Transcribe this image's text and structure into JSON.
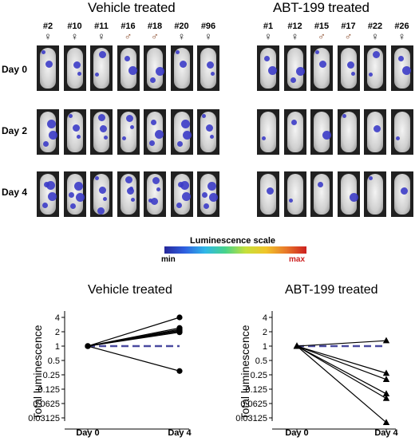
{
  "panels": [
    {
      "title": "Vehicle treated",
      "mice": [
        {
          "id": "#2",
          "sex": "♀"
        },
        {
          "id": "#10",
          "sex": "♀"
        },
        {
          "id": "#11",
          "sex": "♀"
        },
        {
          "id": "#16",
          "sex": "♂"
        },
        {
          "id": "#18",
          "sex": "♂"
        },
        {
          "id": "#20",
          "sex": "♀"
        },
        {
          "id": "#96",
          "sex": "♀"
        }
      ]
    },
    {
      "title": "ABT-199 treated",
      "mice": [
        {
          "id": "#1",
          "sex": "♀"
        },
        {
          "id": "#12",
          "sex": "♀"
        },
        {
          "id": "#15",
          "sex": "♂"
        },
        {
          "id": "#17",
          "sex": "♂"
        },
        {
          "id": "#22",
          "sex": "♀"
        },
        {
          "id": "#26",
          "sex": "♀"
        }
      ]
    }
  ],
  "days": [
    "Day 0",
    "Day 2",
    "Day 4"
  ],
  "scale": {
    "title": "Luminescence scale",
    "min": "min",
    "max": "max"
  },
  "colors": {
    "male_symbol": "#8a4a2a",
    "baseline_line": "#4a4aa0",
    "blob": "#3c3cc8"
  },
  "chart_data": [
    {
      "type": "line",
      "title": "Vehicle treated",
      "xlabel": "",
      "ylabel": "Total luminescence",
      "categories": [
        "Day 0",
        "Day 4"
      ],
      "y_scale": "log2",
      "y_ticks": [
        "4",
        "2",
        "1",
        "0.5",
        "0.25",
        "0.125",
        "0.0625",
        "0.03125"
      ],
      "marker": "circle",
      "baseline": 1,
      "series": [
        {
          "values": [
            1,
            4.0
          ]
        },
        {
          "values": [
            1,
            2.4
          ]
        },
        {
          "values": [
            1,
            2.25
          ]
        },
        {
          "values": [
            1,
            2.15
          ]
        },
        {
          "values": [
            1,
            2.05
          ]
        },
        {
          "values": [
            1,
            1.95
          ]
        },
        {
          "values": [
            1,
            0.3
          ]
        }
      ]
    },
    {
      "type": "line",
      "title": "ABT-199 treated",
      "xlabel": "",
      "ylabel": "Total luminescence",
      "categories": [
        "Day 0",
        "Day 4"
      ],
      "y_scale": "log2",
      "y_ticks": [
        "4",
        "2",
        "1",
        "0.5",
        "0.25",
        "0.125",
        "0.0625",
        "0.03125"
      ],
      "marker": "triangle",
      "baseline": 1,
      "series": [
        {
          "values": [
            1,
            1.3
          ]
        },
        {
          "values": [
            1,
            0.27
          ]
        },
        {
          "values": [
            1,
            0.2
          ]
        },
        {
          "values": [
            1,
            0.1
          ]
        },
        {
          "values": [
            1,
            0.08
          ]
        },
        {
          "values": [
            1,
            0.025
          ]
        }
      ]
    }
  ]
}
